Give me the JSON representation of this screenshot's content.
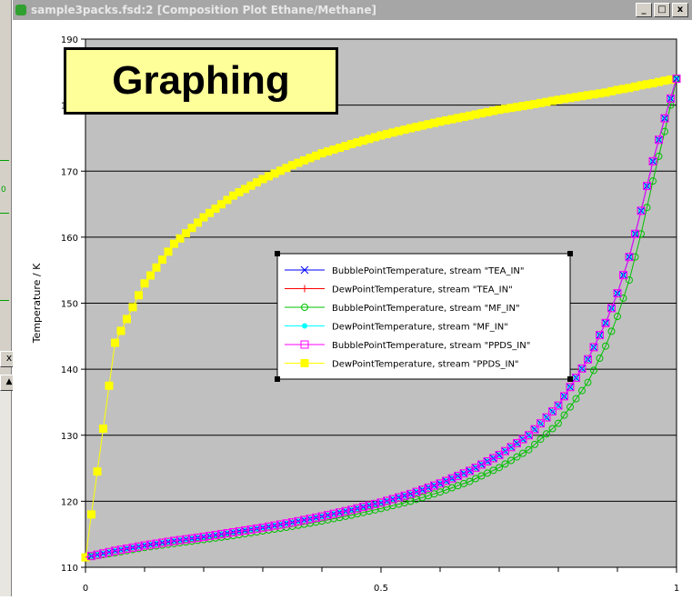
{
  "window": {
    "title": "sample3packs.fsd:2 [Composition Plot Ethane/Methane]",
    "buttons": [
      "_",
      "□",
      "x"
    ]
  },
  "left_panel": {
    "fragment": "0",
    "close_glyph": "x",
    "up_glyph": "▲"
  },
  "badge": {
    "text": "Graphing"
  },
  "colors": {
    "plot_bg": "#c0c0c0",
    "grid": "#000000",
    "BubbleTEA": "#0000ff",
    "DewTEA": "#ff0000",
    "BubbleMF": "#00c000",
    "DewMF": "#00ffff",
    "BubblePPDS": "#ff00ff",
    "DewPPDS": "#ffff00"
  },
  "chart_data": {
    "type": "line",
    "title": "",
    "xlabel": "",
    "ylabel": "Temperature / K",
    "xlim": [
      0,
      1
    ],
    "ylim": [
      110,
      190
    ],
    "xticks": [
      {
        "value": 0,
        "label": "0"
      },
      {
        "value": 0.5,
        "label": "0.5"
      },
      {
        "value": 1,
        "label": "1"
      }
    ],
    "yticks": [
      {
        "value": 110,
        "label": "110"
      },
      {
        "value": 120,
        "label": "120"
      },
      {
        "value": 130,
        "label": "130"
      },
      {
        "value": 140,
        "label": "140"
      },
      {
        "value": 150,
        "label": "150"
      },
      {
        "value": 160,
        "label": "160"
      },
      {
        "value": 170,
        "label": "170"
      },
      {
        "value": 180,
        "label": "180"
      },
      {
        "value": 190,
        "label": "190"
      }
    ],
    "grid": true,
    "legend_position": "center-right",
    "x": [
      0,
      0.05,
      0.1,
      0.15,
      0.2,
      0.25,
      0.3,
      0.35,
      0.4,
      0.45,
      0.5,
      0.55,
      0.6,
      0.65,
      0.7,
      0.75,
      0.8,
      0.85,
      0.88,
      0.9,
      0.92,
      0.94,
      0.96,
      0.98,
      1.0
    ],
    "series": [
      {
        "name": "BubblePointTemperature, stream \"TEA_IN\"",
        "marker": "x",
        "color": "#0000ff",
        "values": [
          111.5,
          112.5,
          113.3,
          114.0,
          114.6,
          115.3,
          116.0,
          116.8,
          117.7,
          118.7,
          119.8,
          121.1,
          122.7,
          124.6,
          127.0,
          130.0,
          134.5,
          141.5,
          147.0,
          151.5,
          157.0,
          164.0,
          171.5,
          178.0,
          184.0
        ]
      },
      {
        "name": "DewPointTemperature, stream \"TEA_IN\"",
        "marker": "cross",
        "color": "#ff0000",
        "values": [
          111.5,
          112.5,
          113.3,
          114.0,
          114.6,
          115.3,
          116.0,
          116.8,
          117.7,
          118.7,
          119.8,
          121.1,
          122.7,
          124.6,
          127.0,
          130.0,
          134.5,
          141.5,
          147.0,
          151.5,
          157.0,
          164.0,
          171.5,
          178.0,
          184.0
        ]
      },
      {
        "name": "BubblePointTemperature, stream \"MF_IN\"",
        "marker": "circle",
        "color": "#00c000",
        "values": [
          111.5,
          112.2,
          113.0,
          113.6,
          114.2,
          114.8,
          115.5,
          116.2,
          117.0,
          117.9,
          118.9,
          120.0,
          121.4,
          123.0,
          125.1,
          127.8,
          131.8,
          138.0,
          143.5,
          148.0,
          153.5,
          160.5,
          168.5,
          176.0,
          184.0
        ]
      },
      {
        "name": "DewPointTemperature, stream \"MF_IN\"",
        "marker": "dot",
        "color": "#00ffff",
        "values": [
          111.5,
          112.5,
          113.3,
          114.0,
          114.6,
          115.3,
          116.0,
          116.8,
          117.7,
          118.7,
          119.8,
          121.1,
          122.7,
          124.6,
          127.0,
          130.0,
          134.5,
          141.5,
          147.0,
          151.5,
          157.0,
          164.0,
          171.5,
          178.0,
          184.0
        ]
      },
      {
        "name": "BubblePointTemperature, stream \"PPDS_IN\"",
        "marker": "square-open",
        "color": "#ff00ff",
        "values": [
          111.5,
          112.5,
          113.3,
          114.0,
          114.6,
          115.3,
          116.0,
          116.8,
          117.7,
          118.7,
          119.8,
          121.1,
          122.7,
          124.6,
          127.0,
          130.0,
          134.5,
          141.5,
          147.0,
          151.5,
          157.0,
          164.0,
          171.5,
          178.0,
          184.0
        ]
      },
      {
        "name": "DewPointTemperature, stream \"PPDS_IN\"",
        "marker": "square-filled",
        "color": "#ffff00",
        "values": [
          111.5,
          144.0,
          153.0,
          159.0,
          163.0,
          166.3,
          168.8,
          170.9,
          172.7,
          174.1,
          175.4,
          176.5,
          177.5,
          178.4,
          179.3,
          180.0,
          180.8,
          181.5,
          181.9,
          182.3,
          182.6,
          183.0,
          183.3,
          183.7,
          184.0
        ]
      }
    ]
  }
}
